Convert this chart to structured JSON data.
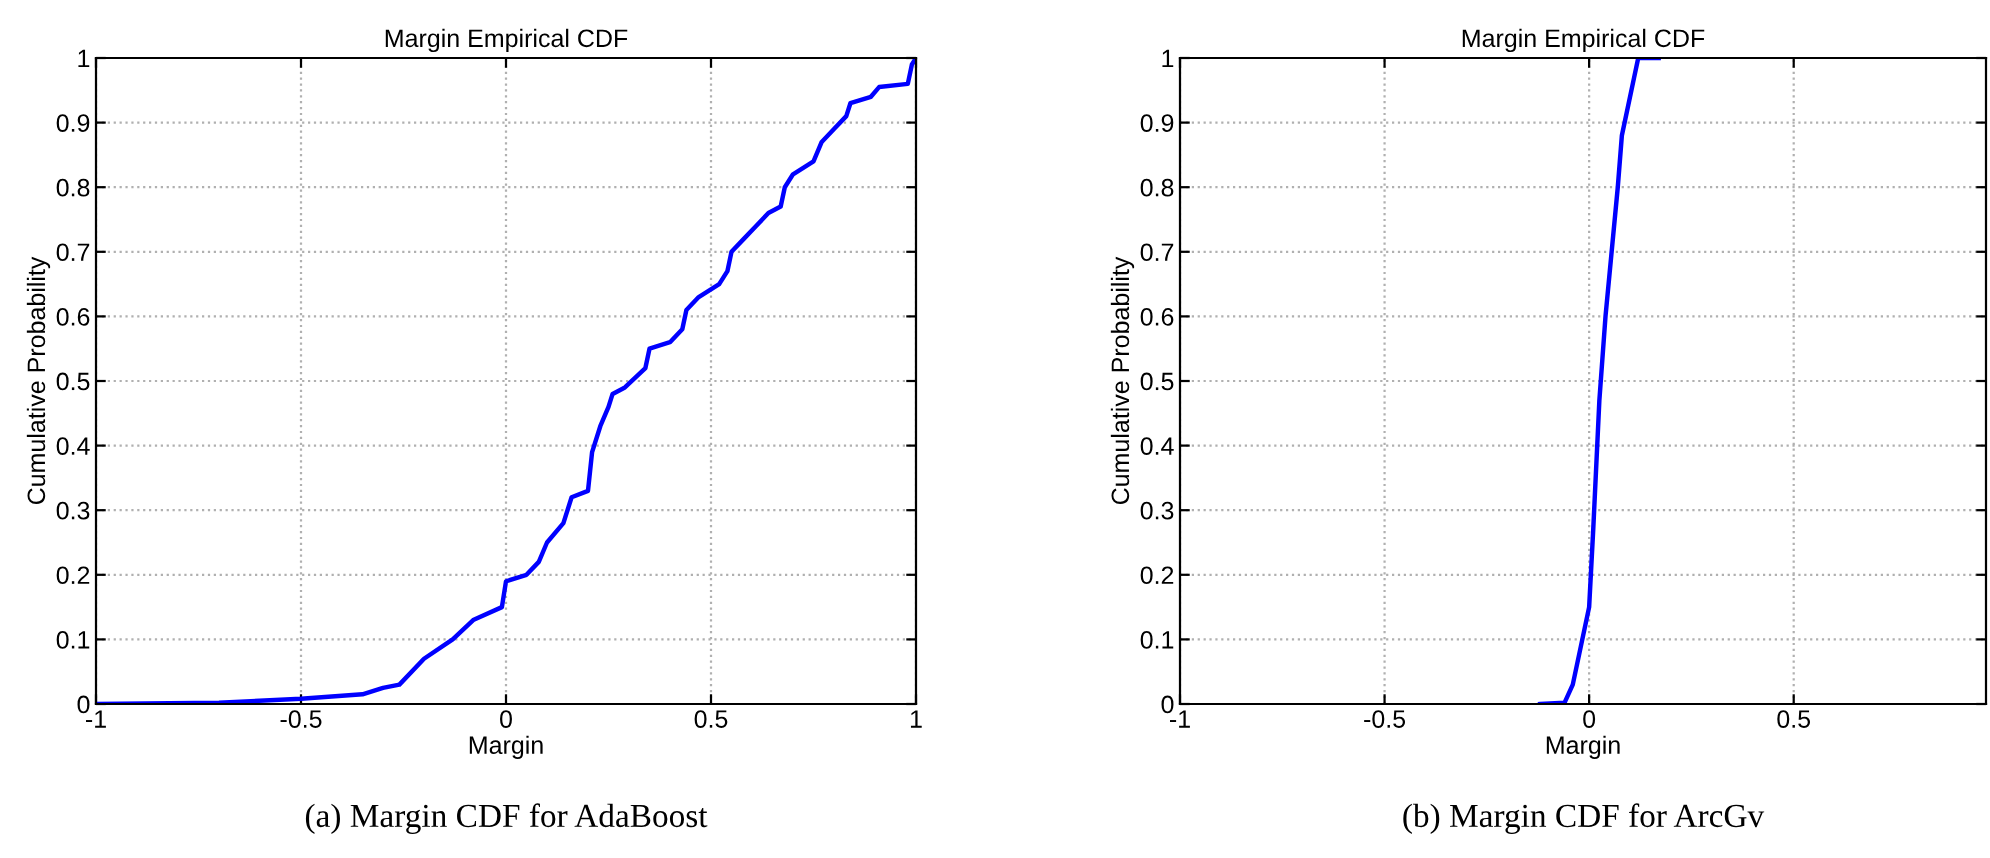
{
  "chart_data": [
    {
      "type": "line",
      "title": "Margin Empirical CDF",
      "xlabel": "Margin",
      "ylabel": "Cumulative Probability",
      "xlim": [
        -1,
        1
      ],
      "xticks": [
        -1,
        -0.5,
        0,
        0.5,
        1
      ],
      "ylim": [
        0,
        1
      ],
      "yticks": [
        0,
        0.1,
        0.2,
        0.3,
        0.4,
        0.5,
        0.6,
        0.7,
        0.8,
        0.9,
        1
      ],
      "grid": true,
      "line_style": "solid",
      "annotations": [
        "(a) Margin CDF for AdaBoost"
      ],
      "series": [
        {
          "color": "#0000ff",
          "x": [
            -1,
            -0.7,
            -0.5,
            -0.35,
            -0.3,
            -0.26,
            -0.2,
            -0.13,
            -0.08,
            -0.01,
            0,
            0.05,
            0.08,
            0.1,
            0.14,
            0.16,
            0.2,
            0.21,
            0.23,
            0.25,
            0.26,
            0.29,
            0.34,
            0.35,
            0.4,
            0.43,
            0.44,
            0.47,
            0.52,
            0.54,
            0.55,
            0.58,
            0.61,
            0.64,
            0.67,
            0.68,
            0.7,
            0.75,
            0.77,
            0.8,
            0.83,
            0.84,
            0.89,
            0.91,
            0.98,
            0.99,
            1
          ],
          "values": [
            0,
            0.002,
            0.008,
            0.015,
            0.025,
            0.03,
            0.07,
            0.1,
            0.13,
            0.15,
            0.19,
            0.2,
            0.22,
            0.25,
            0.28,
            0.32,
            0.33,
            0.39,
            0.43,
            0.46,
            0.48,
            0.49,
            0.52,
            0.55,
            0.56,
            0.58,
            0.61,
            0.63,
            0.65,
            0.67,
            0.7,
            0.72,
            0.74,
            0.76,
            0.77,
            0.8,
            0.82,
            0.84,
            0.87,
            0.89,
            0.91,
            0.93,
            0.94,
            0.955,
            0.96,
            0.99,
            1
          ]
        }
      ]
    },
    {
      "type": "line",
      "title": "Margin Empirical CDF",
      "xlabel": "Margin",
      "ylabel": "Cumulative Probability",
      "xlim": [
        -1,
        0.97
      ],
      "xticks": [
        -1,
        -0.5,
        0,
        0.5
      ],
      "ylim": [
        0,
        1
      ],
      "yticks": [
        0,
        0.1,
        0.2,
        0.3,
        0.4,
        0.5,
        0.6,
        0.7,
        0.8,
        0.9,
        1
      ],
      "grid": true,
      "line_style": "solid",
      "annotations": [
        "(b) Margin CDF for ArcGv"
      ],
      "series": [
        {
          "color": "#0000ff",
          "x": [
            -0.12,
            -0.06,
            -0.04,
            -0.02,
            0,
            0.01,
            0.025,
            0.04,
            0.055,
            0.07,
            0.08,
            0.1,
            0.11,
            0.12,
            0.17
          ],
          "values": [
            0,
            0.002,
            0.03,
            0.09,
            0.15,
            0.27,
            0.47,
            0.6,
            0.7,
            0.8,
            0.88,
            0.94,
            0.97,
            1,
            1
          ]
        }
      ]
    }
  ]
}
